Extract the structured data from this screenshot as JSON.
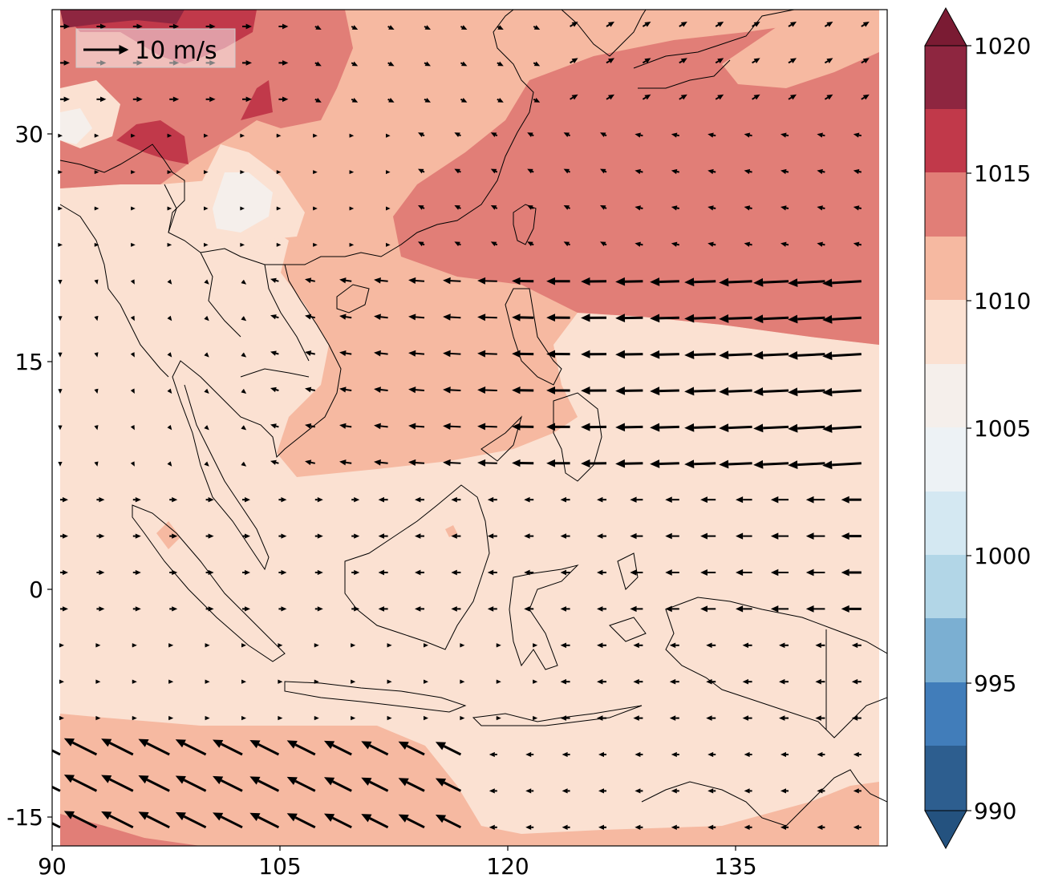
{
  "map": {
    "type": "contour-vector-map",
    "x_ticks": [
      "90",
      "105",
      "120",
      "135"
    ],
    "y_ticks": [
      "30",
      "15",
      "0",
      "-15"
    ],
    "colorbar_ticks": [
      "1020",
      "1015",
      "1010",
      "1005",
      "1000",
      "995",
      "990"
    ],
    "vector_key_label": "10 m/s",
    "colorbar_extend": "both",
    "colors": {
      "level_990": "#24527f",
      "level_992": "#2d5e8f",
      "level_994": "#417dba",
      "level_996": "#7bafd2",
      "level_998": "#b2d6e7",
      "level_1000": "#d4e8f2",
      "level_1002": "#edf2f5",
      "level_1004": "#f5efeb",
      "level_1006": "#fbe1d2",
      "level_1008": "#f6b9a1",
      "level_1010": "#e17e77",
      "level_1012": "#c1394a",
      "level_1014": "#8e2640",
      "level_1016": "#7a1b33"
    }
  }
}
